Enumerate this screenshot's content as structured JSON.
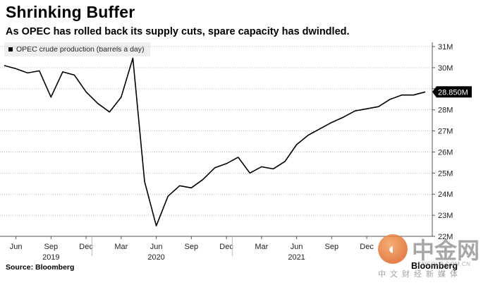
{
  "chart_data": {
    "type": "line",
    "title": "Shrinking Buffer",
    "subtitle": "As OPEC has rolled back its supply cuts, spare capacity has dwindled.",
    "legend": "OPEC crude production (barrels a day)",
    "series": [
      {
        "name": "OPEC crude production (barrels a day)",
        "color": "#000000",
        "x": [
          "2019-05",
          "2019-06",
          "2019-07",
          "2019-08",
          "2019-09",
          "2019-10",
          "2019-11",
          "2019-12",
          "2020-01",
          "2020-02",
          "2020-03",
          "2020-04",
          "2020-05",
          "2020-06",
          "2020-07",
          "2020-08",
          "2020-09",
          "2020-10",
          "2020-11",
          "2020-12",
          "2021-01",
          "2021-02",
          "2021-03",
          "2021-04",
          "2021-05",
          "2021-06",
          "2021-07",
          "2021-08",
          "2021-09",
          "2021-10",
          "2021-11",
          "2021-12",
          "2022-01",
          "2022-02",
          "2022-03",
          "2022-04",
          "2022-05"
        ],
        "values": [
          30.1,
          29.95,
          29.75,
          29.85,
          28.6,
          29.8,
          29.65,
          28.85,
          28.3,
          27.9,
          28.6,
          30.45,
          24.6,
          22.5,
          23.9,
          24.4,
          24.3,
          24.7,
          25.25,
          25.45,
          25.75,
          25.0,
          25.3,
          25.2,
          25.55,
          26.35,
          26.8,
          27.1,
          27.4,
          27.65,
          27.95,
          28.05,
          28.15,
          28.5,
          28.7,
          28.7,
          28.85
        ]
      }
    ],
    "y_axis": {
      "min": 22,
      "max": 31,
      "position": "right",
      "ticks": [
        22,
        23,
        24,
        25,
        26,
        27,
        28,
        29,
        30,
        31
      ],
      "tick_labels": [
        "22M",
        "23M",
        "24M",
        "25M",
        "26M",
        "27M",
        "28M",
        "29M",
        "30M",
        "31M"
      ]
    },
    "x_axis": {
      "month_ticks": [
        {
          "month": "2019-06",
          "label": "Jun"
        },
        {
          "month": "2019-09",
          "label": "Sep"
        },
        {
          "month": "2019-12",
          "label": "Dec"
        },
        {
          "month": "2020-03",
          "label": "Mar"
        },
        {
          "month": "2020-06",
          "label": "Jun"
        },
        {
          "month": "2020-09",
          "label": "Sep"
        },
        {
          "month": "2020-12",
          "label": "Dec"
        },
        {
          "month": "2021-03",
          "label": "Mar"
        },
        {
          "month": "2021-06",
          "label": "Jun"
        },
        {
          "month": "2021-09",
          "label": "Sep"
        },
        {
          "month": "2021-12",
          "label": "Dec"
        }
      ],
      "year_labels": [
        {
          "month": "2019-09",
          "label": "2019"
        },
        {
          "month": "2020-06",
          "label": "2020"
        },
        {
          "month": "2021-06",
          "label": "2021"
        }
      ]
    },
    "last_value_label": "28.850M",
    "grid": "horizontal-dotted",
    "source": "Source: Bloomberg",
    "brand": "Bloomberg"
  },
  "watermark": {
    "name": "中金网",
    "domain": "CNGOLD.COM.CN",
    "tagline": "中文财经新媒体"
  }
}
